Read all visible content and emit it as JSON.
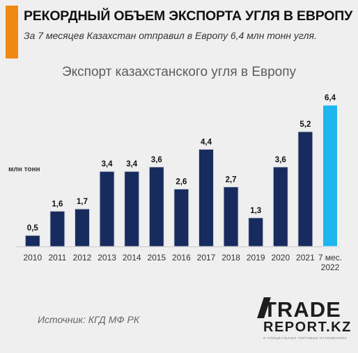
{
  "header": {
    "title": "РЕКОРДНЫЙ ОБЪЕМ ЭКСПОРТА УГЛЯ В ЕВРОПУ",
    "subtitle": "За 7 месяцев Казахстан отправил в Европу 6,4 млн тонн угля."
  },
  "colors": {
    "accent": "#ee8a12",
    "bar": "#172b5e",
    "highlight_bar": "#1fb5ee",
    "background": "#efefef"
  },
  "chart_data": {
    "type": "bar",
    "title": "Экспорт казахстанского угля в Европу",
    "ylabel": "млн тонн",
    "xlabel": "",
    "categories": [
      "2010",
      "2011",
      "2012",
      "2013",
      "2014",
      "2015",
      "2016",
      "2017",
      "2018",
      "2019",
      "2020",
      "2021",
      "7 мес. 2022"
    ],
    "values": [
      0.5,
      1.6,
      1.7,
      3.4,
      3.4,
      3.6,
      2.6,
      4.4,
      2.7,
      1.3,
      3.6,
      5.2,
      6.4
    ],
    "value_labels": [
      "0,5",
      "1,6",
      "1,7",
      "3,4",
      "3,4",
      "3,6",
      "2,6",
      "4,4",
      "2,7",
      "1,3",
      "3,6",
      "5,2",
      "6,4"
    ],
    "highlight_index": 12,
    "ylim": [
      0,
      6.4
    ],
    "grid": false,
    "legend": "none"
  },
  "footer": {
    "source": "Источник: КГД МФ РК",
    "logo_line1": "TRADE",
    "logo_line2": "REPORT.KZ",
    "logo_tagline": "О СПЕЦИАЛЬНЫХ ТОРГОВЫХ ОТНОШЕНИЯХ"
  }
}
